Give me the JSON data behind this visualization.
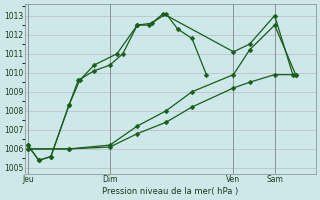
{
  "title": "Pression niveau de la mer( hPa )",
  "bg_color": "#cce8e8",
  "grid_color_major": "#b0c8c8",
  "grid_color_minor": "#daeaea",
  "line_color": "#1a5c1a",
  "ylim_min": 1004.7,
  "ylim_max": 1013.6,
  "yticks": [
    1005,
    1006,
    1007,
    1008,
    1009,
    1010,
    1011,
    1012,
    1013
  ],
  "xtick_labels": [
    "Jeu",
    "Dim",
    "Ven",
    "Sam"
  ],
  "xtick_positions": [
    0.0,
    0.285,
    0.714,
    0.857
  ],
  "vline_positions": [
    0.0,
    0.285,
    0.714,
    0.857
  ],
  "xlim_min": -0.01,
  "xlim_max": 1.0,
  "line1_x": [
    0.0,
    0.038,
    0.08,
    0.143,
    0.175,
    0.23,
    0.285,
    0.33,
    0.38,
    0.42,
    0.48,
    0.52,
    0.57,
    0.62
  ],
  "line1_y": [
    1006.2,
    1005.4,
    1005.6,
    1008.3,
    1009.6,
    1010.1,
    1010.4,
    1011.0,
    1012.5,
    1012.5,
    1013.1,
    1012.3,
    1011.8,
    1009.9
  ],
  "line2_x": [
    0.0,
    0.038,
    0.08,
    0.143,
    0.18,
    0.23,
    0.31,
    0.38,
    0.43,
    0.47,
    0.714,
    0.77,
    0.857,
    0.92
  ],
  "line2_y": [
    1006.2,
    1005.4,
    1005.6,
    1008.3,
    1009.6,
    1010.4,
    1011.0,
    1012.5,
    1012.6,
    1013.1,
    1011.1,
    1011.5,
    1013.0,
    1009.9
  ],
  "line3_x": [
    0.0,
    0.143,
    0.285,
    0.38,
    0.48,
    0.57,
    0.714,
    0.77,
    0.857,
    0.93
  ],
  "line3_y": [
    1006.0,
    1006.0,
    1006.2,
    1007.2,
    1008.0,
    1009.0,
    1009.9,
    1011.2,
    1012.5,
    1009.9
  ],
  "line4_x": [
    0.0,
    0.143,
    0.285,
    0.38,
    0.48,
    0.57,
    0.714,
    0.77,
    0.857,
    0.93
  ],
  "line4_y": [
    1006.0,
    1006.0,
    1006.1,
    1006.8,
    1007.4,
    1008.2,
    1009.2,
    1009.5,
    1009.9,
    1009.9
  ]
}
